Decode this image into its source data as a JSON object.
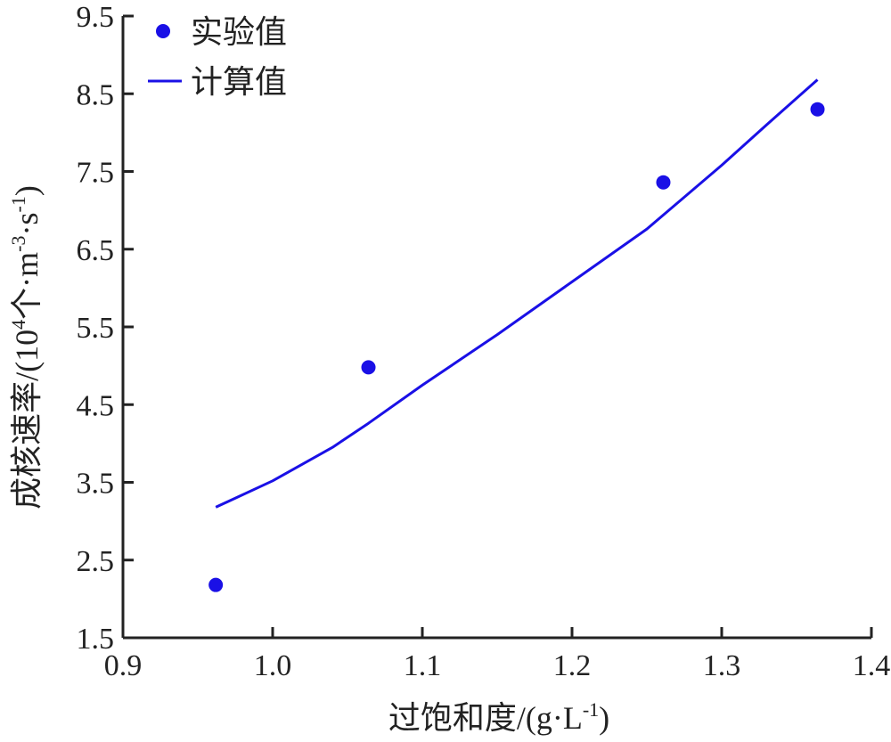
{
  "chart_data": {
    "type": "scatter",
    "xlabel_text": "过饱和度/(g·L",
    "xlabel_sup": "-1",
    "xlabel_close": ")",
    "ylabel_text": "成核速率/(10",
    "ylabel_sup1": "4",
    "ylabel_mid1": "个·m",
    "ylabel_sup2": "-3",
    "ylabel_mid2": "·s",
    "ylabel_sup3": "-1",
    "ylabel_close": ")",
    "xlim": [
      0.9,
      1.4
    ],
    "ylim": [
      1.5,
      9.5
    ],
    "xticks": [
      "0.9",
      "1.0",
      "1.1",
      "1.2",
      "1.3",
      "1.4"
    ],
    "yticks": [
      "1.5",
      "2.5",
      "3.5",
      "4.5",
      "5.5",
      "6.5",
      "7.5",
      "8.5",
      "9.5"
    ],
    "legend_position": "top-left",
    "colors": {
      "series": "#1a10e6",
      "axis": "#222222"
    },
    "series": [
      {
        "name": "实验值",
        "kind": "points",
        "x": [
          0.962,
          1.064,
          1.261,
          1.364
        ],
        "y": [
          2.18,
          4.98,
          7.36,
          8.3
        ]
      },
      {
        "name": "计算值",
        "kind": "line",
        "x": [
          0.962,
          1.0,
          1.04,
          1.064,
          1.1,
          1.15,
          1.2,
          1.25,
          1.3,
          1.33,
          1.364
        ],
        "y": [
          3.18,
          3.52,
          3.95,
          4.26,
          4.75,
          5.4,
          6.08,
          6.76,
          7.58,
          8.1,
          8.68
        ]
      }
    ]
  }
}
